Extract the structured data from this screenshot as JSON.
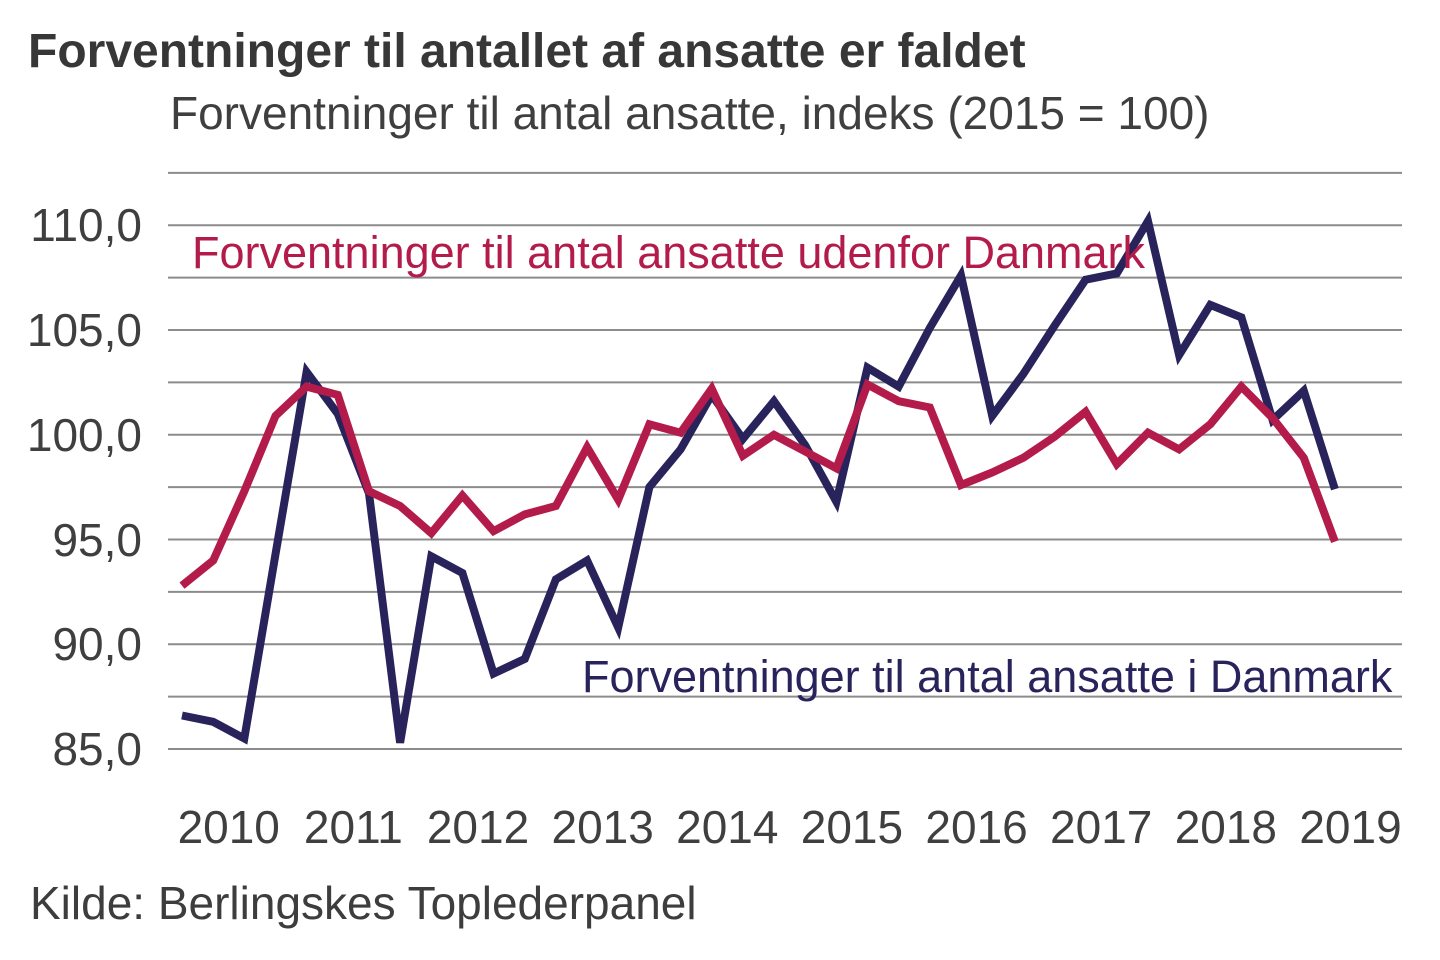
{
  "title": "Forventninger til antallet af ansatte er faldet",
  "subtitle": "Forventninger til antal ansatte, indeks (2015 = 100)",
  "source": "Kilde: Berlingskes Toplederpanel",
  "colors": {
    "series_abroad": "#b31b4b",
    "series_denmark": "#29235c",
    "gridline": "#8c8c8c",
    "text": "#3f3f3f"
  },
  "chart_data": {
    "type": "line",
    "title": "Forventninger til antallet af ansatte er faldet",
    "subtitle": "Forventninger til antal ansatte, indeks (2015 = 100)",
    "x_frequency": "quarterly",
    "x_start": "2010-Q1",
    "x_end": "2019-Q2",
    "x_year_labels": [
      "2010",
      "2011",
      "2012",
      "2013",
      "2014",
      "2015",
      "2016",
      "2017",
      "2018",
      "2019"
    ],
    "y_ticks": [
      {
        "value": 85,
        "label": "85,0"
      },
      {
        "value": 90,
        "label": "90,0"
      },
      {
        "value": 95,
        "label": "95,0"
      },
      {
        "value": 100,
        "label": "100,0"
      },
      {
        "value": 105,
        "label": "105,0"
      },
      {
        "value": 110,
        "label": "110,0"
      }
    ],
    "ylim": [
      85,
      112.5
    ],
    "grid_step": 2.5,
    "grid_on": true,
    "legend_position": "inline-annotations",
    "series": [
      {
        "name": "Forventninger til antal ansatte i Danmark",
        "color": "#29235c",
        "values": [
          86.6,
          86.3,
          85.5,
          94.3,
          103.0,
          101.0,
          97.2,
          85.3,
          94.2,
          93.4,
          88.6,
          89.3,
          93.1,
          94.0,
          90.8,
          97.5,
          99.3,
          101.9,
          99.8,
          101.6,
          99.5,
          96.8,
          103.2,
          102.3,
          105.1,
          107.6,
          100.9,
          102.9,
          105.2,
          107.4,
          107.7,
          110.2,
          103.8,
          106.2,
          105.6,
          100.7,
          102.1,
          97.4
        ]
      },
      {
        "name": "Forventninger til antal ansatte udenfor Danmark",
        "color": "#b31b4b",
        "values": [
          92.8,
          94.0,
          97.3,
          100.9,
          102.3,
          101.9,
          97.3,
          96.6,
          95.3,
          97.1,
          95.4,
          96.2,
          96.6,
          99.4,
          96.9,
          100.5,
          100.1,
          102.2,
          99.0,
          100.0,
          99.2,
          98.4,
          102.4,
          101.6,
          101.3,
          97.6,
          98.2,
          98.9,
          99.9,
          101.1,
          98.6,
          100.1,
          99.3,
          100.5,
          102.3,
          100.8,
          98.9,
          94.9
        ]
      }
    ]
  },
  "annotations": {
    "legend_abroad": "Forventninger til antal ansatte udenfor Danmark",
    "legend_denmark": "Forventninger til antal ansatte i Danmark"
  }
}
